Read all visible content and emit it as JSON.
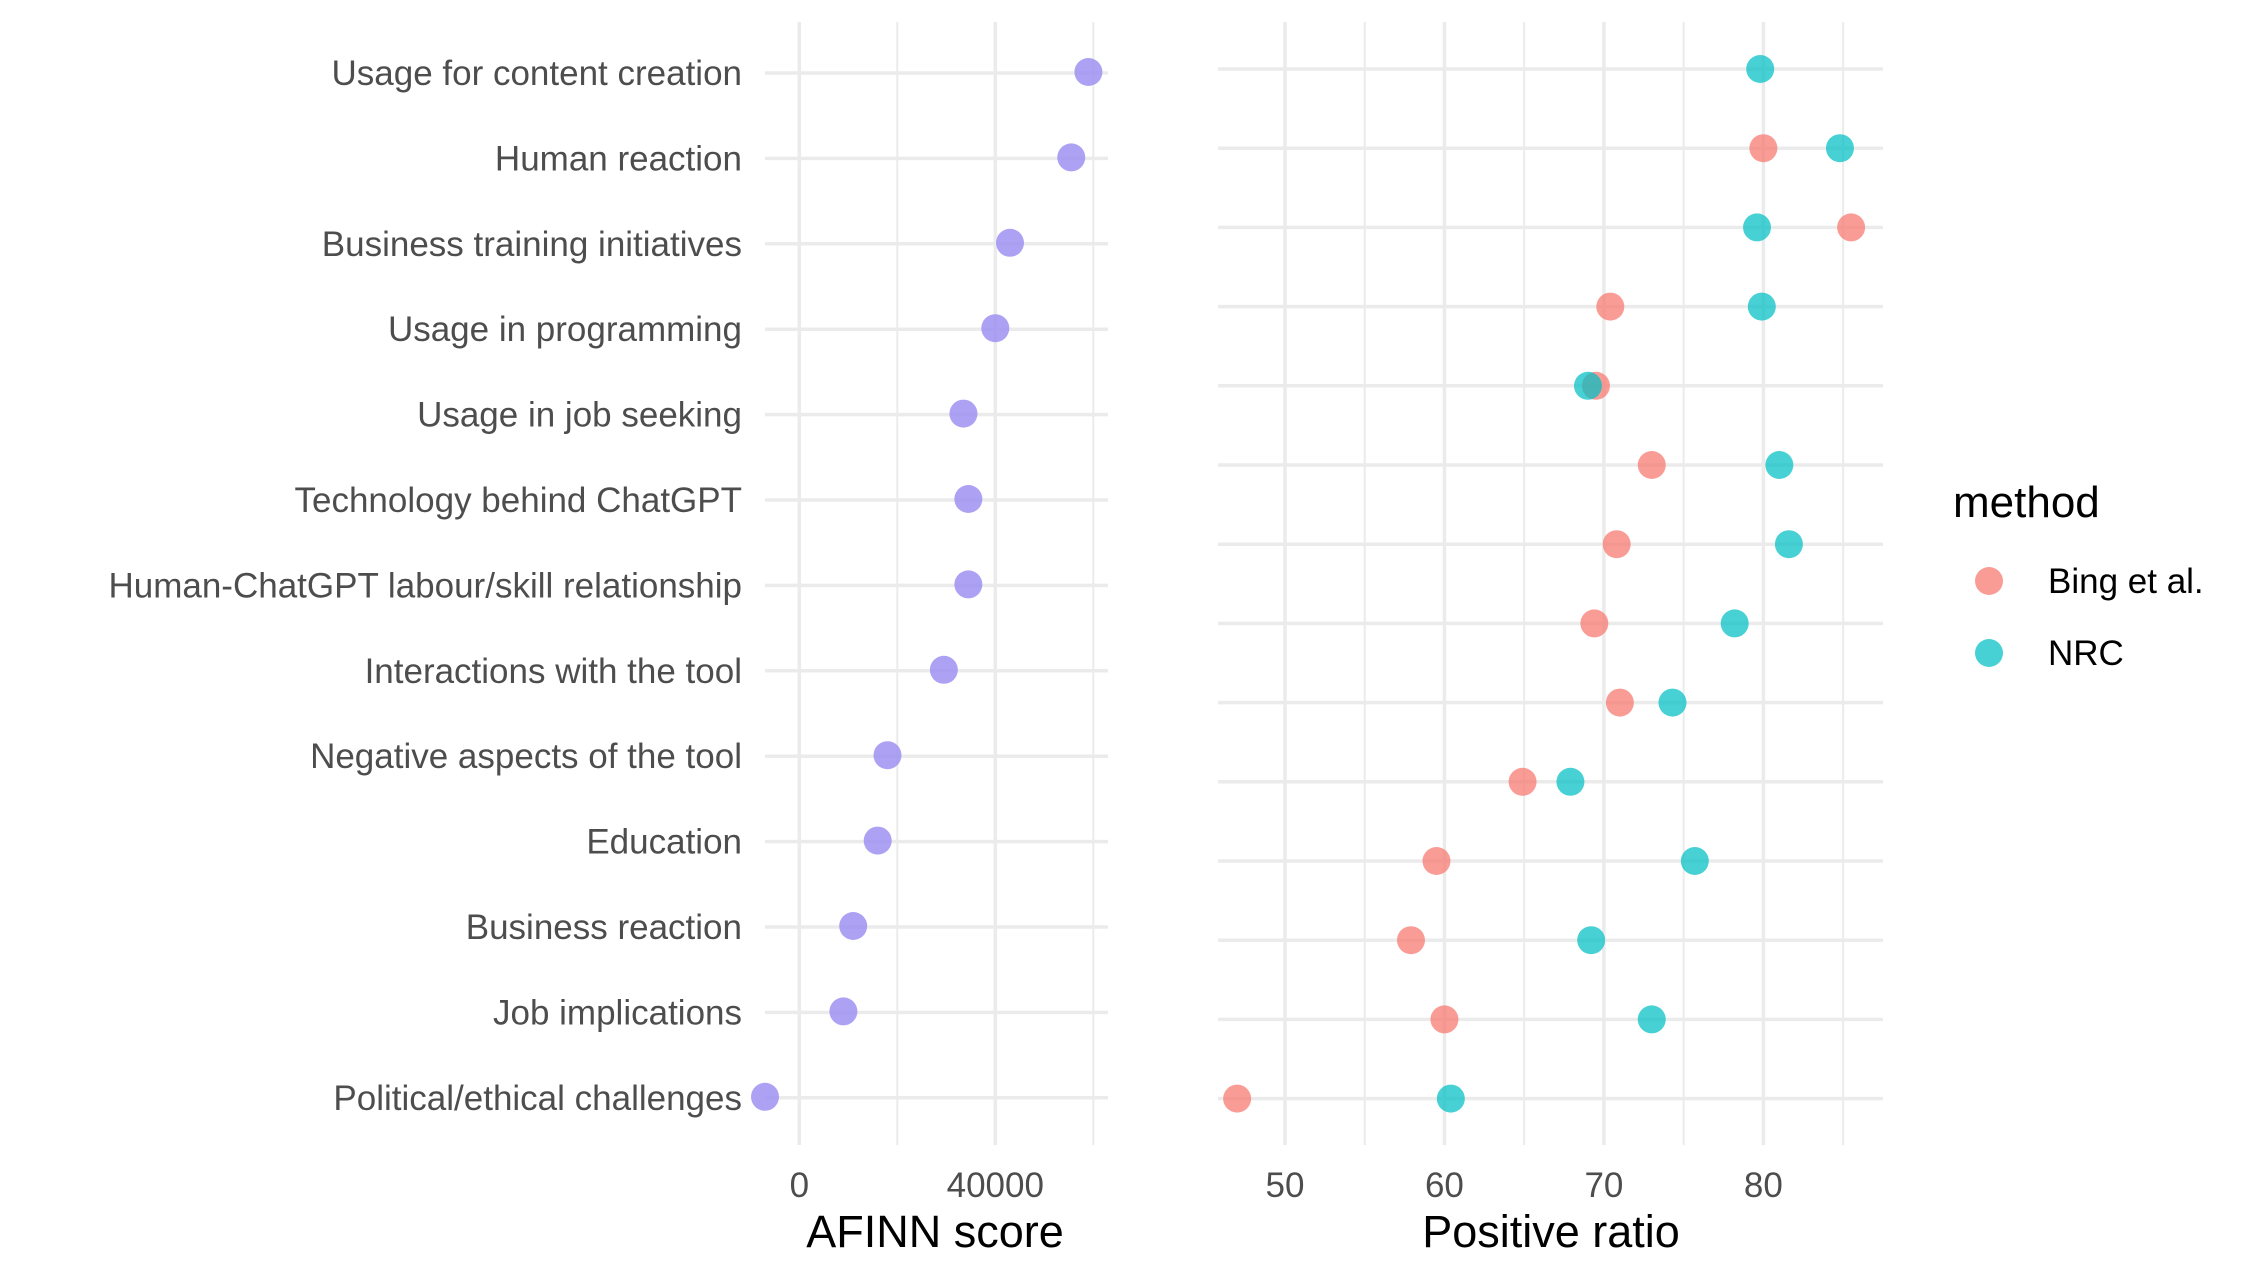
{
  "chart_data": [
    {
      "type": "scatter",
      "xlabel": "AFINN score",
      "ylabel": "",
      "xticks": [
        0,
        40000
      ],
      "xtick_labels": [
        "0",
        "40000"
      ],
      "xlim": [
        -7000,
        63000
      ],
      "grid": true,
      "categories": [
        "Usage for content creation",
        "Human reaction",
        "Business training initiatives",
        "Usage in programming",
        "Usage in job seeking",
        "Technology behind ChatGPT",
        "Human-ChatGPT labour/skill relationship",
        "Interactions with the tool",
        "Negative aspects of the tool",
        "Education",
        "Business reaction",
        "Job implications",
        "Political/ethical challenges"
      ],
      "values": [
        59000,
        55500,
        43000,
        40000,
        33500,
        34500,
        34500,
        29500,
        18000,
        16000,
        11000,
        9000,
        -7000
      ],
      "color": "#9b8cf2"
    },
    {
      "type": "scatter",
      "xlabel": "Positive ratio",
      "ylabel": "",
      "xticks": [
        50,
        60,
        70,
        80
      ],
      "xtick_labels": [
        "50",
        "60",
        "70",
        "80"
      ],
      "xlim": [
        45.8,
        87.5
      ],
      "grid": true,
      "legend": {
        "title": "method",
        "position": "right"
      },
      "series": [
        {
          "name": "Bing et al.",
          "color": "#f8766d",
          "values": [
            null,
            80.0,
            85.5,
            70.4,
            69.5,
            73.0,
            70.8,
            69.4,
            71.0,
            64.9,
            59.5,
            57.9,
            60.0,
            47.0
          ]
        },
        {
          "name": "NRC",
          "color": "#00bfc4",
          "values": [
            79.8,
            84.8,
            79.6,
            79.9,
            69.0,
            81.0,
            81.6,
            78.2,
            74.3,
            67.9,
            75.7,
            69.2,
            73.0,
            60.4
          ]
        }
      ]
    }
  ]
}
